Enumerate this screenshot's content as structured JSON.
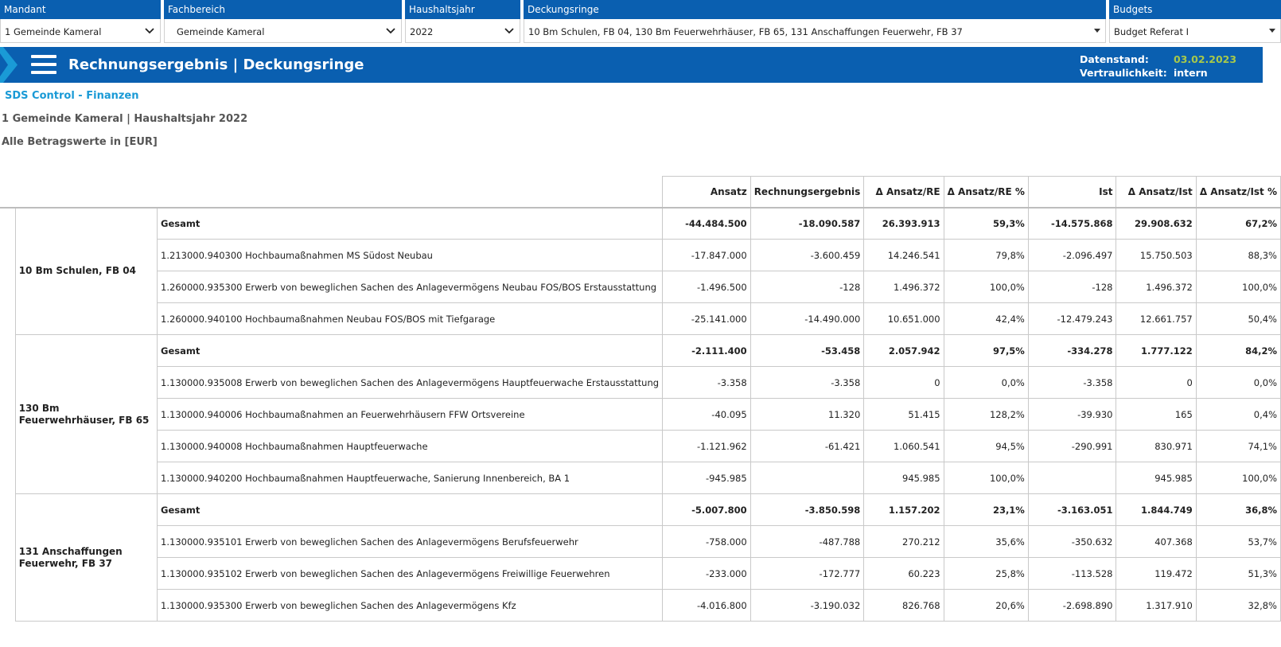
{
  "filters": {
    "mandant": {
      "label": "Mandant",
      "value": "1 Gemeinde Kameral"
    },
    "fachbereich": {
      "label": "Fachbereich",
      "value": "Gemeinde Kameral"
    },
    "haushaltsjahr": {
      "label": "Haushaltsjahr",
      "value": "2022"
    },
    "deckungsringe": {
      "label": "Deckungsringe",
      "value": "10 Bm Schulen, FB 04, 130 Bm Feuerwehrhäuser, FB 65, 131 Anschaffungen Feuerwehr, FB 37"
    },
    "budgets": {
      "label": "Budgets",
      "value": "Budget Referat I"
    }
  },
  "header": {
    "title": "Rechnungsergebnis | Deckungsringe",
    "datenstand_label": "Datenstand:",
    "datenstand_value": "03.02.2023",
    "vertraulichkeit_label": "Vertraulichkeit:",
    "vertraulichkeit_value": "intern",
    "date_color": "#a8c94a",
    "brand_color": "#0a5fb0"
  },
  "info": {
    "app": "SDS Control - Finanzen",
    "context": "1 Gemeinde Kameral | Haushaltsjahr 2022",
    "unit": "Alle Betragswerte in [EUR]"
  },
  "table": {
    "columns": [
      "Ansatz",
      "Rechnungsergebnis",
      "Δ Ansatz/RE",
      "Δ Ansatz/RE %",
      "Ist",
      "Δ Ansatz/Ist",
      "Δ Ansatz/Ist %"
    ],
    "groups": [
      {
        "name": "10 Bm Schulen, FB 04",
        "rows": [
          {
            "desc": "Gesamt",
            "total": true,
            "vals": [
              "-44.484.500",
              "-18.090.587",
              "26.393.913",
              "59,3%",
              "-14.575.868",
              "29.908.632",
              "67,2%"
            ]
          },
          {
            "desc": "1.213000.940300 Hochbaumaßnahmen MS Südost Neubau",
            "vals": [
              "-17.847.000",
              "-3.600.459",
              "14.246.541",
              "79,8%",
              "-2.096.497",
              "15.750.503",
              "88,3%"
            ]
          },
          {
            "desc": "1.260000.935300 Erwerb von beweglichen Sachen des Anlagevermögens Neubau FOS/BOS Erstausstattung",
            "vals": [
              "-1.496.500",
              "-128",
              "1.496.372",
              "100,0%",
              "-128",
              "1.496.372",
              "100,0%"
            ]
          },
          {
            "desc": "1.260000.940100 Hochbaumaßnahmen Neubau FOS/BOS mit Tiefgarage",
            "vals": [
              "-25.141.000",
              "-14.490.000",
              "10.651.000",
              "42,4%",
              "-12.479.243",
              "12.661.757",
              "50,4%"
            ]
          }
        ]
      },
      {
        "name": "130 Bm Feuerwehrhäuser, FB 65",
        "rows": [
          {
            "desc": "Gesamt",
            "total": true,
            "vals": [
              "-2.111.400",
              "-53.458",
              "2.057.942",
              "97,5%",
              "-334.278",
              "1.777.122",
              "84,2%"
            ]
          },
          {
            "desc": "1.130000.935008 Erwerb von beweglichen Sachen des Anlagevermögens Hauptfeuerwache Erstausstattung",
            "vals": [
              "-3.358",
              "-3.358",
              "0",
              "0,0%",
              "-3.358",
              "0",
              "0,0%"
            ]
          },
          {
            "desc": "1.130000.940006 Hochbaumaßnahmen an Feuerwehrhäusern FFW Ortsvereine",
            "vals": [
              "-40.095",
              "11.320",
              "51.415",
              "128,2%",
              "-39.930",
              "165",
              "0,4%"
            ]
          },
          {
            "desc": "1.130000.940008 Hochbaumaßnahmen Hauptfeuerwache",
            "vals": [
              "-1.121.962",
              "-61.421",
              "1.060.541",
              "94,5%",
              "-290.991",
              "830.971",
              "74,1%"
            ]
          },
          {
            "desc": "1.130000.940200 Hochbaumaßnahmen Hauptfeuerwache, Sanierung Innenbereich, BA 1",
            "vals": [
              "-945.985",
              "",
              "945.985",
              "100,0%",
              "",
              "945.985",
              "100,0%"
            ]
          }
        ]
      },
      {
        "name": "131 Anschaffungen Feuerwehr, FB 37",
        "rows": [
          {
            "desc": "Gesamt",
            "total": true,
            "vals": [
              "-5.007.800",
              "-3.850.598",
              "1.157.202",
              "23,1%",
              "-3.163.051",
              "1.844.749",
              "36,8%"
            ]
          },
          {
            "desc": "1.130000.935101 Erwerb von beweglichen Sachen des Anlagevermögens Berufsfeuerwehr",
            "vals": [
              "-758.000",
              "-487.788",
              "270.212",
              "35,6%",
              "-350.632",
              "407.368",
              "53,7%"
            ]
          },
          {
            "desc": "1.130000.935102 Erwerb von beweglichen Sachen des Anlagevermögens Freiwillige Feuerwehren",
            "vals": [
              "-233.000",
              "-172.777",
              "60.223",
              "25,8%",
              "-113.528",
              "119.472",
              "51,3%"
            ]
          },
          {
            "desc": "1.130000.935300 Erwerb von beweglichen Sachen des Anlagevermögens Kfz",
            "vals": [
              "-4.016.800",
              "-3.190.032",
              "826.768",
              "20,6%",
              "-2.698.890",
              "1.317.910",
              "32,8%"
            ]
          }
        ]
      }
    ]
  }
}
